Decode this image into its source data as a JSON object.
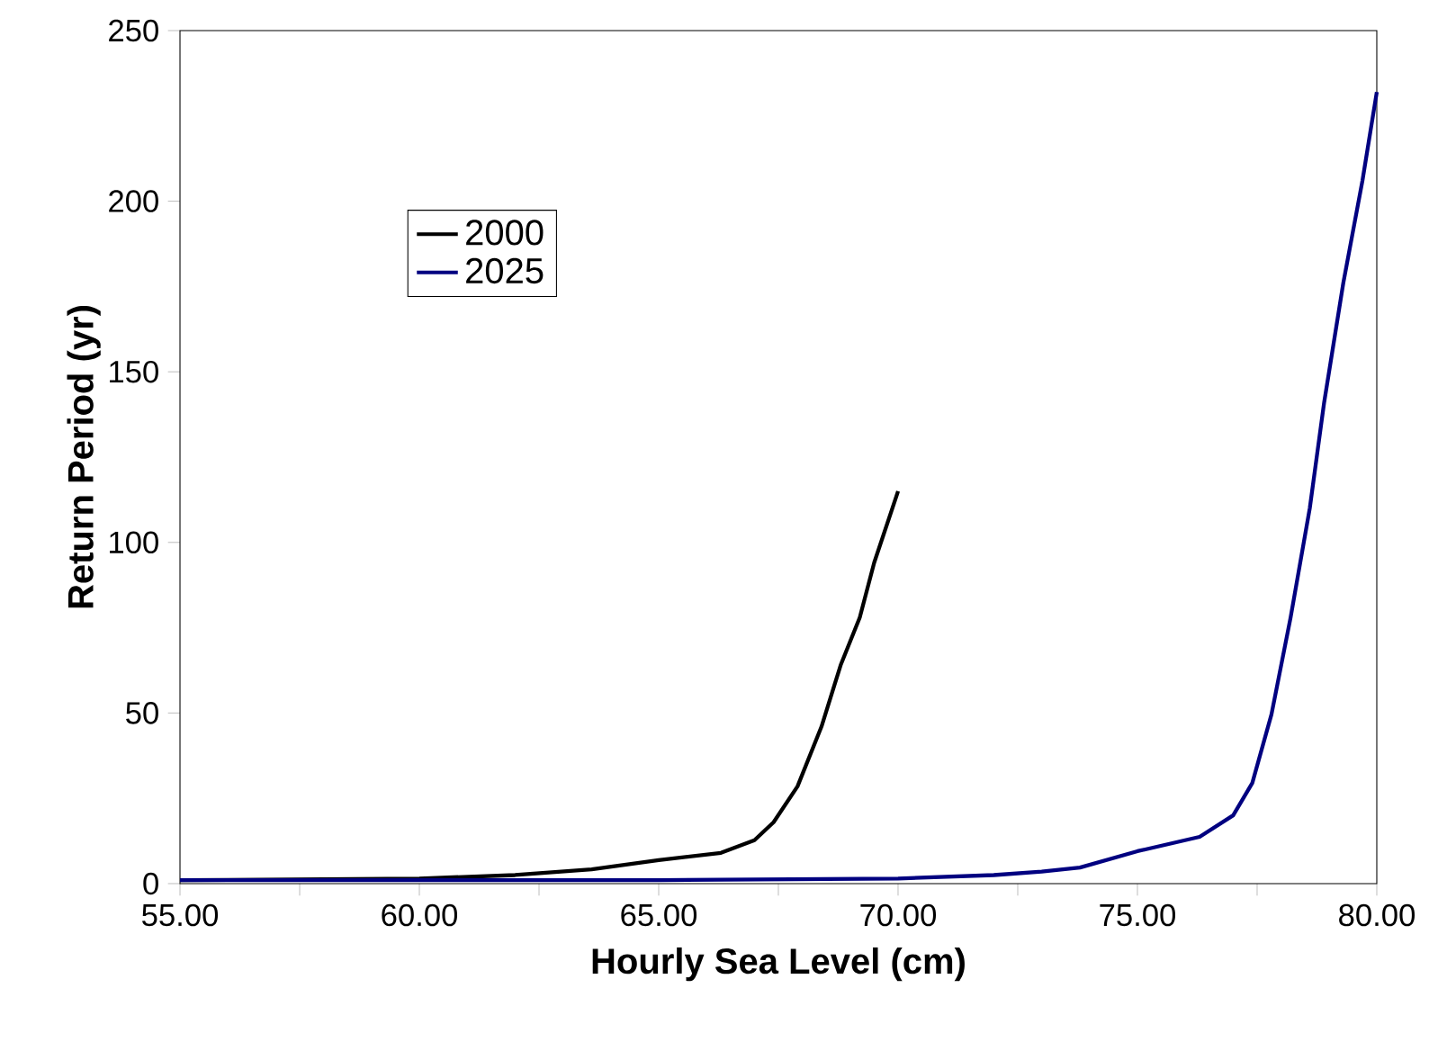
{
  "chart_data": {
    "type": "line",
    "xlabel": "Hourly Sea Level (cm)",
    "ylabel": "Return Period (yr)",
    "series": [
      {
        "name": "2000",
        "color": "#000000",
        "x": [
          55,
          60,
          62,
          63.6,
          65.0,
          66.3,
          67.0,
          67.4,
          67.9,
          68.4,
          68.8,
          69.2,
          69.5,
          70
        ],
        "values": [
          1,
          1.5,
          2.5,
          4.2,
          6.9,
          9,
          12.7,
          18,
          28.5,
          46,
          64,
          78,
          94,
          115
        ]
      },
      {
        "name": "2025",
        "color": "#000080",
        "x": [
          55,
          65,
          70,
          72,
          73,
          73.8,
          75.0,
          76.3,
          77.0,
          77.4,
          77.8,
          78.2,
          78.6,
          78.9,
          79.3,
          79.7,
          80
        ],
        "values": [
          1,
          1,
          1.5,
          2.5,
          3.5,
          4.7,
          9.5,
          13.7,
          20,
          29.5,
          49.6,
          78,
          110,
          141,
          176,
          206,
          232
        ]
      }
    ],
    "xlim": [
      55,
      80
    ],
    "ylim": [
      0,
      250
    ],
    "xticks": [
      {
        "value": 55,
        "label": "55.00"
      },
      {
        "value": 57.5,
        "label": null
      },
      {
        "value": 60,
        "label": "60.00"
      },
      {
        "value": 62.5,
        "label": null
      },
      {
        "value": 65,
        "label": "65.00"
      },
      {
        "value": 67.5,
        "label": null
      },
      {
        "value": 70,
        "label": "70.00"
      },
      {
        "value": 72.5,
        "label": null
      },
      {
        "value": 75,
        "label": "75.00"
      },
      {
        "value": 77.5,
        "label": null
      },
      {
        "value": 80,
        "label": "80.00"
      }
    ],
    "yticks": [
      0,
      50,
      100,
      150,
      200,
      250
    ],
    "grid": false,
    "legend": "top left",
    "marker": "none",
    "line_style": "solid"
  }
}
